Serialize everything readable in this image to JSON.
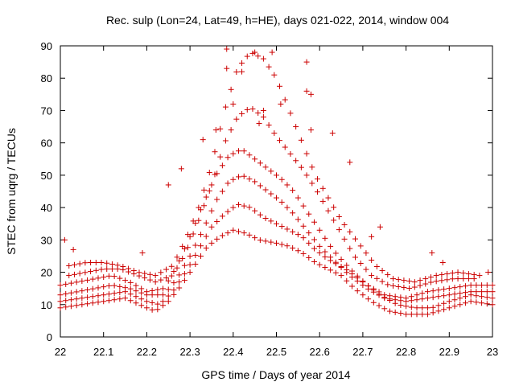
{
  "chart_data": {
    "type": "scatter",
    "title": "Rec. sulp (Lon=24, Lat=49, h=HE), days 021-022, 2014, window 004",
    "xlabel": "GPS time / Days of year 2014",
    "ylabel": "STEC from uqrg / TECUs",
    "xlim": [
      22,
      23
    ],
    "ylim": [
      0,
      90
    ],
    "xticks": [
      "22",
      "22.1",
      "22.2",
      "22.3",
      "22.4",
      "22.5",
      "22.6",
      "22.7",
      "22.8",
      "22.9",
      "23"
    ],
    "yticks": [
      "0",
      "10",
      "20",
      "30",
      "40",
      "50",
      "60",
      "70",
      "80",
      "90"
    ],
    "grid": false,
    "marker": "+",
    "color": "#cc0000",
    "series_tracks": [
      {
        "x": [
          22.0,
          22.05,
          22.1,
          22.15,
          22.2,
          22.22,
          22.25,
          22.28,
          22.31,
          22.34,
          22.37,
          22.4,
          22.43,
          22.46,
          22.5,
          22.53,
          22.56,
          22.59,
          22.62,
          22.65,
          22.68,
          22.72,
          22.76,
          22.8,
          22.85,
          22.9,
          22.95,
          23.0
        ],
        "y": [
          9,
          10,
          11,
          12,
          9,
          8,
          11,
          16,
          22,
          28,
          31,
          33,
          32,
          30,
          29,
          28,
          26,
          23,
          21,
          19,
          15,
          11,
          8,
          7,
          7,
          9,
          11,
          10
        ]
      },
      {
        "x": [
          22.0,
          22.05,
          22.1,
          22.15,
          22.2,
          22.23,
          22.26,
          22.29,
          22.32,
          22.35,
          22.38,
          22.41,
          22.44,
          22.47,
          22.5,
          22.53,
          22.56,
          22.59,
          22.62,
          22.66,
          22.7,
          22.74,
          22.78,
          22.82,
          22.86,
          22.9,
          22.95,
          23.0
        ],
        "y": [
          11,
          12,
          13,
          14,
          11,
          10,
          14,
          20,
          27,
          34,
          38,
          41,
          40,
          37,
          35,
          33,
          31,
          27,
          24,
          21,
          17,
          13,
          10,
          9,
          9,
          11,
          13,
          12
        ]
      },
      {
        "x": [
          22.0,
          22.04,
          22.08,
          22.12,
          22.16,
          22.2,
          22.24,
          22.27,
          22.3,
          22.33,
          22.36,
          22.39,
          22.42,
          22.45,
          22.48,
          22.51,
          22.54,
          22.57,
          22.6,
          22.63,
          22.67,
          22.71,
          22.75,
          22.8,
          22.85,
          22.9,
          22.95,
          23.0
        ],
        "y": [
          13,
          14,
          15,
          16,
          15,
          13,
          13,
          18,
          25,
          33,
          42,
          48,
          50,
          48,
          45,
          42,
          38,
          33,
          28,
          24,
          19,
          15,
          12,
          11,
          12,
          13,
          14,
          14
        ]
      },
      {
        "x": [
          22.0,
          22.04,
          22.08,
          22.12,
          22.16,
          22.2,
          22.24,
          22.27,
          22.3,
          22.33,
          22.36,
          22.39,
          22.42,
          22.45,
          22.48,
          22.51,
          22.54,
          22.57,
          22.6,
          22.63,
          22.67,
          22.71,
          22.75,
          22.8,
          22.85,
          22.9,
          22.95,
          23.0
        ],
        "y": [
          16,
          17,
          18,
          19,
          17,
          14,
          15,
          22,
          31,
          41,
          50,
          56,
          58,
          55,
          52,
          49,
          45,
          39,
          33,
          27,
          21,
          16,
          13,
          12,
          14,
          15,
          16,
          16
        ]
      },
      {
        "x": [
          22.02,
          22.06,
          22.1,
          22.14,
          22.18,
          22.22,
          22.26,
          22.29,
          22.32,
          22.35,
          22.38,
          22.41,
          22.44,
          22.47,
          22.5,
          22.53,
          22.56,
          22.59,
          22.62,
          22.65,
          22.68,
          22.72,
          22.76,
          22.81,
          22.86,
          22.91,
          22.96
        ],
        "y": [
          19,
          20,
          21,
          21,
          19,
          17,
          19,
          26,
          36,
          47,
          60,
          68,
          71,
          68,
          62,
          57,
          52,
          46,
          39,
          32,
          25,
          19,
          16,
          15,
          17,
          18,
          18
        ]
      },
      {
        "x": [
          22.02,
          22.06,
          22.1,
          22.14,
          22.18,
          22.22,
          22.26,
          22.29,
          22.32,
          22.35,
          22.38,
          22.41,
          22.44,
          22.47,
          22.5,
          22.53,
          22.56,
          22.59,
          22.62,
          22.65,
          22.69,
          22.73,
          22.77,
          22.82,
          22.87,
          22.92,
          22.97
        ],
        "y": [
          22,
          23,
          23,
          22,
          20,
          19,
          22,
          30,
          40,
          53,
          70,
          83,
          88,
          86,
          80,
          70,
          60,
          50,
          43,
          36,
          29,
          22,
          18,
          17,
          19,
          20,
          19
        ]
      }
    ],
    "scatter_extra": [
      {
        "x": 22.01,
        "y": 30
      },
      {
        "x": 22.03,
        "y": 27
      },
      {
        "x": 22.19,
        "y": 26
      },
      {
        "x": 22.25,
        "y": 47
      },
      {
        "x": 22.28,
        "y": 52
      },
      {
        "x": 22.33,
        "y": 61
      },
      {
        "x": 22.36,
        "y": 64
      },
      {
        "x": 22.385,
        "y": 89
      },
      {
        "x": 22.385,
        "y": 83
      },
      {
        "x": 22.42,
        "y": 82
      },
      {
        "x": 22.45,
        "y": 88
      },
      {
        "x": 22.49,
        "y": 88
      },
      {
        "x": 22.51,
        "y": 72
      },
      {
        "x": 22.57,
        "y": 85
      },
      {
        "x": 22.57,
        "y": 76
      },
      {
        "x": 22.58,
        "y": 75
      },
      {
        "x": 22.58,
        "y": 64
      },
      {
        "x": 22.63,
        "y": 63
      },
      {
        "x": 22.67,
        "y": 54
      },
      {
        "x": 22.74,
        "y": 34
      },
      {
        "x": 22.72,
        "y": 31
      },
      {
        "x": 22.86,
        "y": 26
      },
      {
        "x": 22.885,
        "y": 23
      },
      {
        "x": 22.99,
        "y": 20
      },
      {
        "x": 22.47,
        "y": 70
      },
      {
        "x": 22.4,
        "y": 72
      },
      {
        "x": 22.46,
        "y": 66
      }
    ]
  }
}
